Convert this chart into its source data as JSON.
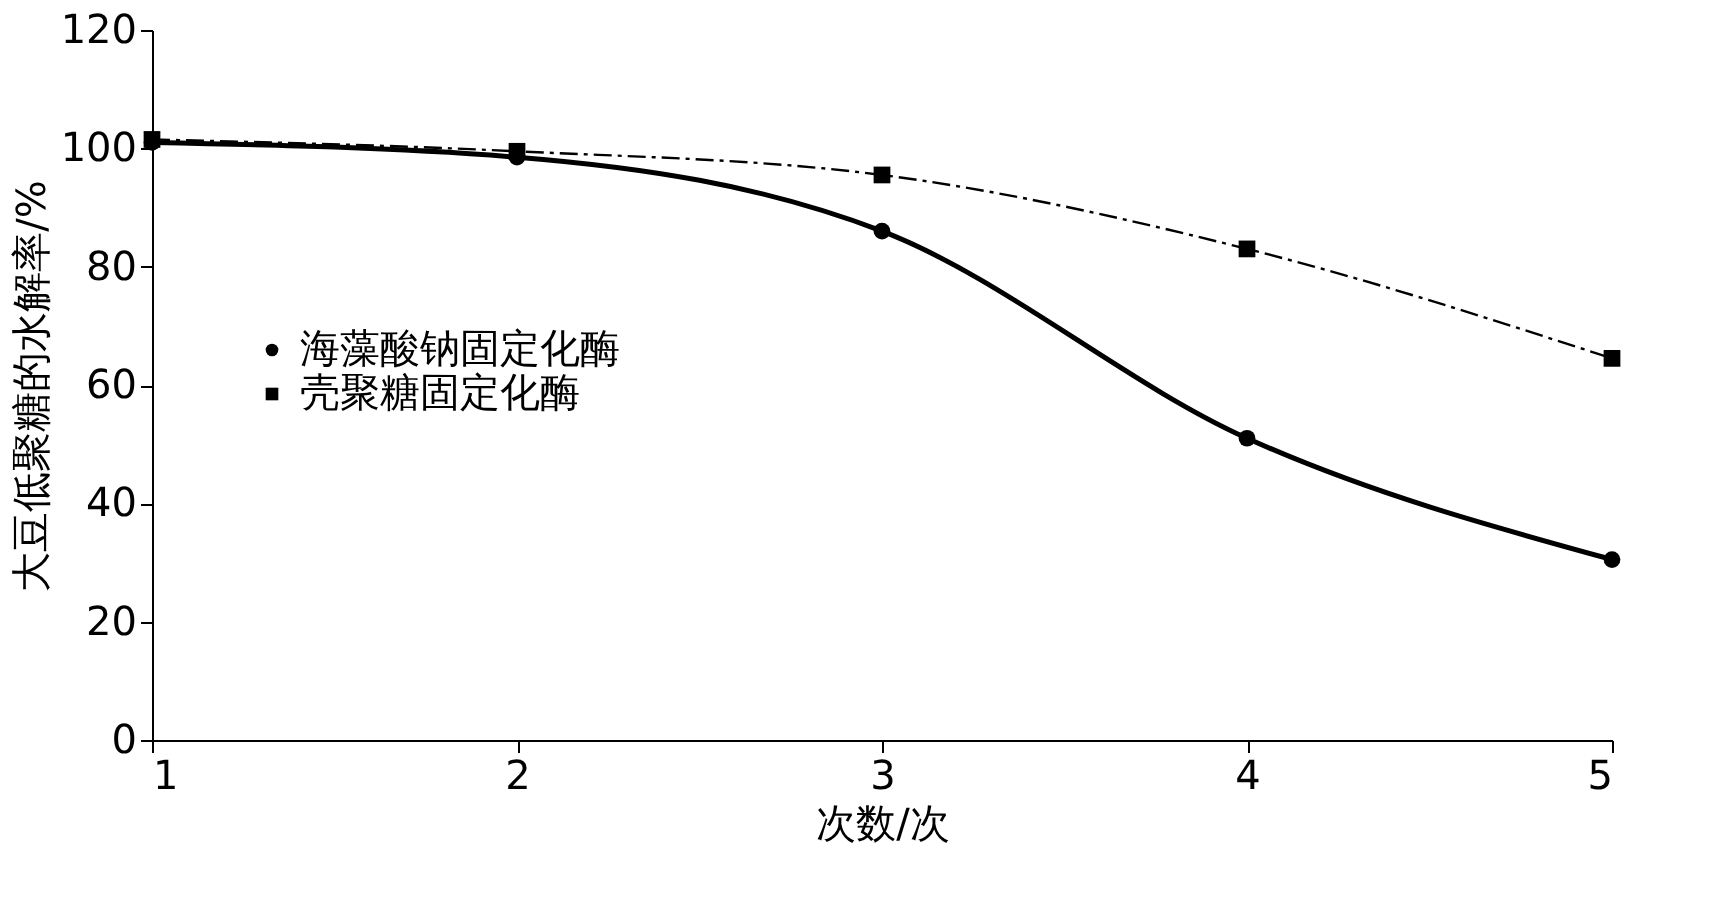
{
  "chart_data": {
    "type": "line",
    "xlabel": "次数/次",
    "ylabel": "大豆低聚糖的水解率/%",
    "x": [
      1,
      2,
      3,
      4,
      5
    ],
    "series": [
      {
        "name": "海藻酸钠固定化酶",
        "color": "#000000",
        "values": [
          101,
          98.5,
          86,
          51,
          30.5
        ],
        "marker": "circle",
        "line_style": "solid"
      },
      {
        "name": "壳聚糖固定化酶",
        "color": "#000000",
        "values": [
          101.5,
          99.5,
          95.5,
          83,
          64.5
        ],
        "marker": "square",
        "line_style": "dashed"
      }
    ],
    "xlim": [
      1,
      5
    ],
    "xticks": [
      1,
      2,
      3,
      4,
      5
    ],
    "ylim": [
      0,
      120
    ],
    "yticks": [
      0,
      20,
      40,
      60,
      80,
      100,
      120
    ],
    "grid": false,
    "legend": "left"
  }
}
